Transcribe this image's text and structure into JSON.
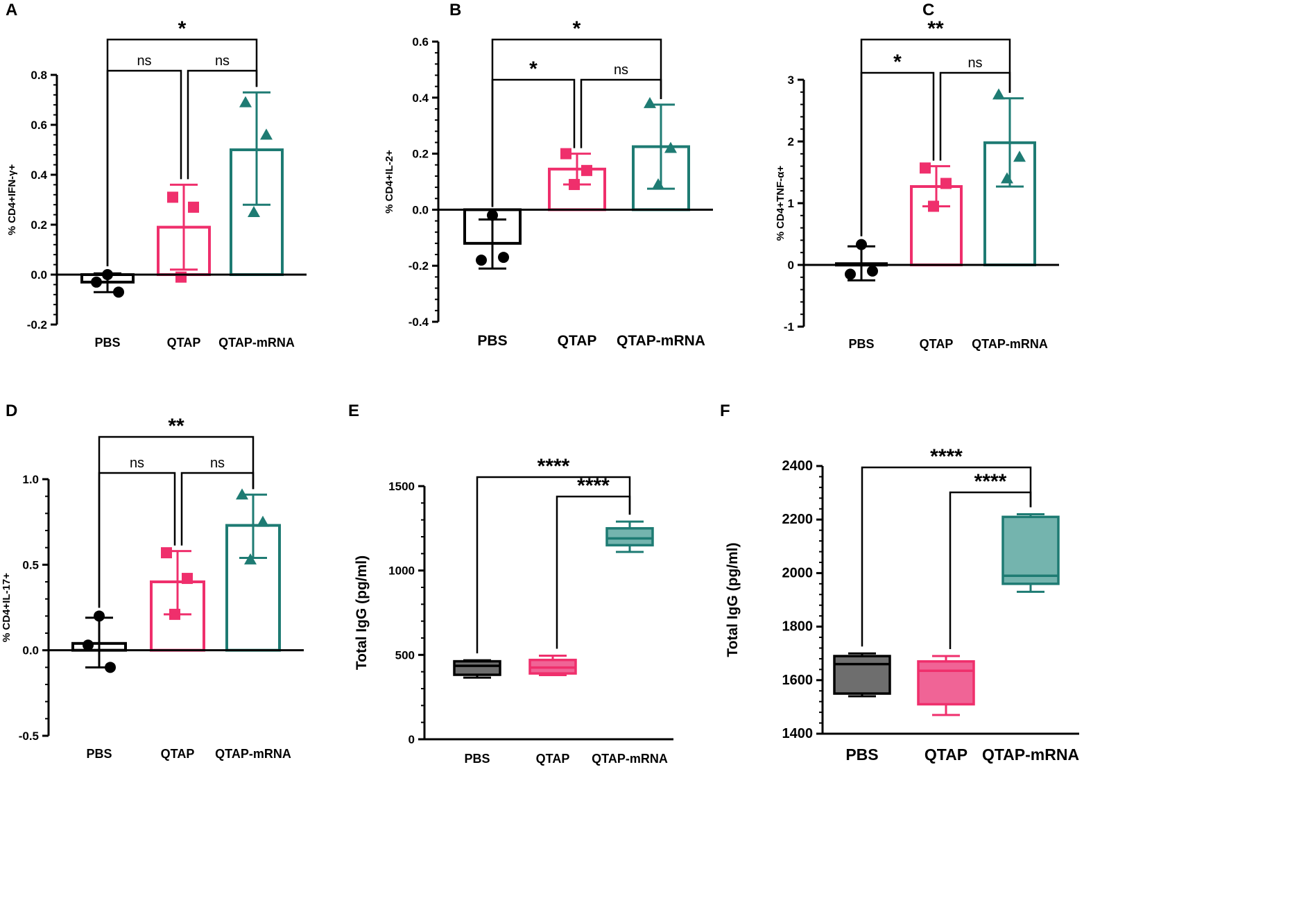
{
  "colors": {
    "black": "#000000",
    "pink": "#ef2f6c",
    "teal": "#1e7b73",
    "gray_fill": "#6e6e6e",
    "pink_fill": "#f06496",
    "teal_fill": "#74b4ae"
  },
  "chart_data": [
    {
      "panel": "A",
      "type": "bar",
      "ylabel": "% CD4+IFN-γ+",
      "categories": [
        "PBS",
        "QTAP",
        "QTAP-mRNA"
      ],
      "ylim": [
        -0.2,
        0.8
      ],
      "ticks": [
        -0.2,
        0.0,
        0.2,
        0.4,
        0.6,
        0.8
      ],
      "tick_labels": [
        "-0.2",
        "0.0",
        "0.2",
        "0.4",
        "0.6",
        "0.8"
      ],
      "means": [
        -0.03,
        0.19,
        0.5
      ],
      "sd_low": [
        -0.07,
        0.02,
        0.28
      ],
      "sd_high": [
        0.005,
        0.36,
        0.73
      ],
      "points": [
        [
          0.0,
          -0.03,
          -0.07
        ],
        [
          0.31,
          0.27,
          -0.01
        ],
        [
          0.69,
          0.56,
          0.25
        ]
      ],
      "sig": [
        {
          "from": 0,
          "to": 2,
          "label": "*",
          "level": 2
        },
        {
          "from": 0,
          "to": 1,
          "label": "ns",
          "level": 1
        },
        {
          "from": 1,
          "to": 2,
          "label": "ns",
          "level": 1
        }
      ]
    },
    {
      "panel": "B",
      "type": "bar",
      "ylabel": "% CD4+IL-2+",
      "categories": [
        "PBS",
        "QTAP",
        "QTAP-mRNA"
      ],
      "ylim": [
        -0.4,
        0.6
      ],
      "ticks": [
        -0.4,
        -0.2,
        0.0,
        0.2,
        0.4,
        0.6
      ],
      "tick_labels": [
        "-0.4",
        "-0.2",
        "0.0",
        "0.2",
        "0.4",
        "0.6"
      ],
      "means": [
        -0.12,
        0.145,
        0.225
      ],
      "sd_low": [
        -0.21,
        0.09,
        0.075
      ],
      "sd_high": [
        -0.035,
        0.2,
        0.375
      ],
      "points": [
        [
          -0.02,
          -0.18,
          -0.17
        ],
        [
          0.2,
          0.14,
          0.09
        ],
        [
          0.38,
          0.22,
          0.09
        ]
      ],
      "sig": [
        {
          "from": 0,
          "to": 2,
          "label": "*",
          "level": 2
        },
        {
          "from": 0,
          "to": 1,
          "label": "*",
          "level": 1
        },
        {
          "from": 1,
          "to": 2,
          "label": "ns",
          "level": 1
        }
      ]
    },
    {
      "panel": "C",
      "type": "bar",
      "ylabel": "% CD4+TNF-α+",
      "categories": [
        "PBS",
        "QTAP",
        "QTAP-mRNA"
      ],
      "ylim": [
        -1,
        3
      ],
      "ticks": [
        -1,
        0,
        1,
        2,
        3
      ],
      "tick_labels": [
        "-1",
        "0",
        "1",
        "2",
        "3"
      ],
      "means": [
        0.02,
        1.27,
        1.98
      ],
      "sd_low": [
        -0.25,
        0.95,
        1.27
      ],
      "sd_high": [
        0.3,
        1.6,
        2.7
      ],
      "points": [
        [
          0.33,
          -0.15,
          -0.1
        ],
        [
          1.57,
          1.32,
          0.95
        ],
        [
          2.76,
          1.75,
          1.4
        ]
      ],
      "sig": [
        {
          "from": 0,
          "to": 2,
          "label": "**",
          "level": 2
        },
        {
          "from": 0,
          "to": 1,
          "label": "*",
          "level": 1
        },
        {
          "from": 1,
          "to": 2,
          "label": "ns",
          "level": 1
        }
      ]
    },
    {
      "panel": "D",
      "type": "bar",
      "ylabel": "% CD4+IL-17+",
      "categories": [
        "PBS",
        "QTAP",
        "QTAP-mRNA"
      ],
      "ylim": [
        -0.5,
        1.0
      ],
      "ticks": [
        -0.5,
        0.0,
        0.5,
        1.0
      ],
      "tick_labels": [
        "-0.5",
        "0.0",
        "0.5",
        "1.0"
      ],
      "means": [
        0.04,
        0.4,
        0.73
      ],
      "sd_low": [
        -0.1,
        0.21,
        0.54
      ],
      "sd_high": [
        0.19,
        0.58,
        0.91
      ],
      "points": [
        [
          0.2,
          0.03,
          -0.1
        ],
        [
          0.57,
          0.42,
          0.21
        ],
        [
          0.91,
          0.75,
          0.53
        ]
      ],
      "sig": [
        {
          "from": 0,
          "to": 2,
          "label": "**",
          "level": 2
        },
        {
          "from": 0,
          "to": 1,
          "label": "ns",
          "level": 1
        },
        {
          "from": 1,
          "to": 2,
          "label": "ns",
          "level": 1
        }
      ]
    },
    {
      "panel": "E",
      "type": "box",
      "ylabel": "Total IgG (pg/ml)",
      "categories": [
        "PBS",
        "QTAP",
        "QTAP-mRNA"
      ],
      "ylim": [
        0,
        1500
      ],
      "ticks": [
        0,
        500,
        1000,
        1500
      ],
      "tick_labels": [
        "0",
        "500",
        "1000",
        "1500"
      ],
      "boxes": [
        {
          "min": 365,
          "q1": 382,
          "median": 435,
          "q3": 462,
          "max": 468
        },
        {
          "min": 380,
          "q1": 390,
          "median": 425,
          "q3": 470,
          "max": 495
        },
        {
          "min": 1110,
          "q1": 1150,
          "median": 1190,
          "q3": 1250,
          "max": 1290
        }
      ],
      "sig": [
        {
          "from": 0,
          "to": 2,
          "label": "****",
          "level": 2
        },
        {
          "from": 1,
          "to": 2,
          "label": "****",
          "level": 1
        }
      ]
    },
    {
      "panel": "F",
      "type": "box",
      "ylabel": "Total IgG (pg/ml)",
      "categories": [
        "PBS",
        "QTAP",
        "QTAP-mRNA"
      ],
      "ylim": [
        1400,
        2400
      ],
      "ticks": [
        1400,
        1600,
        1800,
        2000,
        2200,
        2400
      ],
      "tick_labels": [
        "1400",
        "1600",
        "1800",
        "2000",
        "2200",
        "2400"
      ],
      "boxes": [
        {
          "min": 1540,
          "q1": 1550,
          "median": 1660,
          "q3": 1690,
          "max": 1700
        },
        {
          "min": 1470,
          "q1": 1510,
          "median": 1635,
          "q3": 1670,
          "max": 1690
        },
        {
          "min": 1930,
          "q1": 1960,
          "median": 1990,
          "q3": 2210,
          "max": 2220
        }
      ],
      "sig": [
        {
          "from": 0,
          "to": 2,
          "label": "****",
          "level": 2
        },
        {
          "from": 1,
          "to": 2,
          "label": "****",
          "level": 1
        }
      ]
    }
  ]
}
